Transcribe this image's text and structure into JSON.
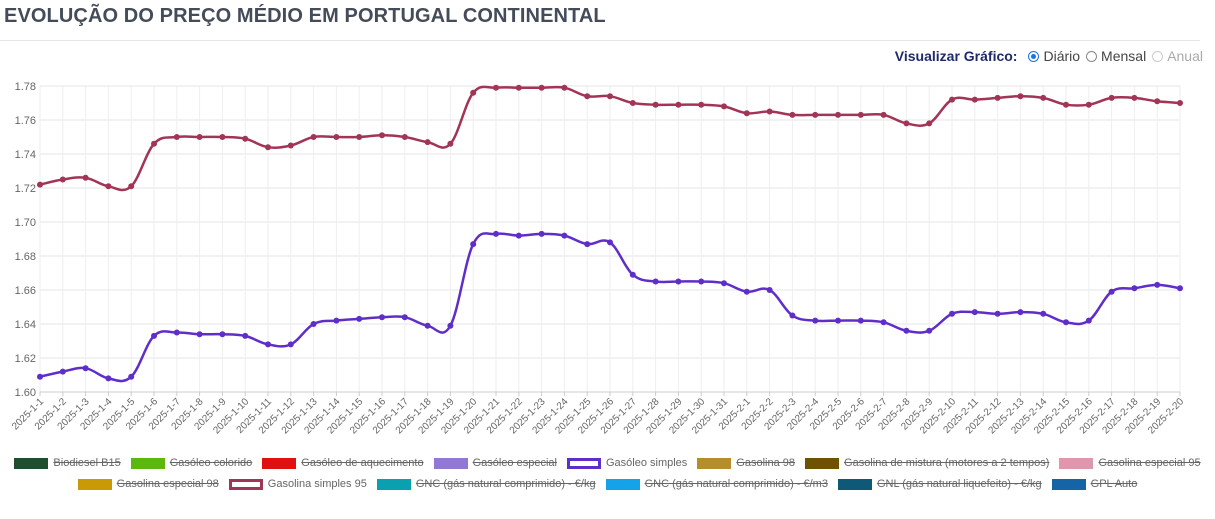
{
  "page": {
    "title": "EVOLUÇÃO DO PREÇO MÉDIO EM PORTUGAL CONTINENTAL",
    "view_label": "Visualizar Gráfico:",
    "view_options": [
      {
        "label": "Diário",
        "checked": true,
        "disabled": false
      },
      {
        "label": "Mensal",
        "checked": false,
        "disabled": false
      },
      {
        "label": "Anual",
        "checked": false,
        "disabled": true
      }
    ]
  },
  "legend": [
    {
      "label": "Biodiesel B15",
      "color": "#1f4d2e",
      "visible": false
    },
    {
      "label": "Gasóleo colorido",
      "color": "#5cb80f",
      "visible": false
    },
    {
      "label": "Gasóleo de aquecimento",
      "color": "#e01010",
      "visible": false
    },
    {
      "label": "Gasóleo especial",
      "color": "#9178d6",
      "visible": false
    },
    {
      "label": "Gasóleo simples",
      "color": "#5f2ec9",
      "visible": true
    },
    {
      "label": "Gasolina 98",
      "color": "#b38e2a",
      "visible": false
    },
    {
      "label": "Gasolina de mistura (motores a 2 tempos)",
      "color": "#6f5200",
      "visible": false
    },
    {
      "label": "Gasolina especial 95",
      "color": "#e097ad",
      "visible": false
    },
    {
      "label": "Gasolina especial 98",
      "color": "#c99a06",
      "visible": false
    },
    {
      "label": "Gasolina simples 95",
      "color": "#a23456",
      "visible": true
    },
    {
      "label": "GNC (gás natural comprimido) - €/kg",
      "color": "#0aa0b0",
      "visible": false
    },
    {
      "label": "GNC (gás natural comprimido) - €/m3",
      "color": "#14a3e8",
      "visible": false
    },
    {
      "label": "GNL (gás natural liquefeito) - €/kg",
      "color": "#0e5878",
      "visible": false
    },
    {
      "label": "GPL Auto",
      "color": "#1565a6",
      "visible": false
    }
  ],
  "chart_data": {
    "type": "line",
    "categories": [
      "2025-1-1",
      "2025-1-2",
      "2025-1-3",
      "2025-1-4",
      "2025-1-5",
      "2025-1-6",
      "2025-1-7",
      "2025-1-8",
      "2025-1-9",
      "2025-1-10",
      "2025-1-11",
      "2025-1-12",
      "2025-1-13",
      "2025-1-14",
      "2025-1-15",
      "2025-1-16",
      "2025-1-17",
      "2025-1-18",
      "2025-1-19",
      "2025-1-20",
      "2025-1-21",
      "2025-1-22",
      "2025-1-23",
      "2025-1-24",
      "2025-1-25",
      "2025-1-26",
      "2025-1-27",
      "2025-1-28",
      "2025-1-29",
      "2025-1-30",
      "2025-1-31",
      "2025-2-1",
      "2025-2-2",
      "2025-2-3",
      "2025-2-4",
      "2025-2-5",
      "2025-2-6",
      "2025-2-7",
      "2025-2-8",
      "2025-2-9",
      "2025-2-10",
      "2025-2-11",
      "2025-2-12",
      "2025-2-13",
      "2025-2-14",
      "2025-2-15",
      "2025-2-16",
      "2025-2-17",
      "2025-2-18",
      "2025-2-19",
      "2025-2-20"
    ],
    "series": [
      {
        "name": "Gasolina simples 95",
        "color": "#a23456",
        "values": [
          1.722,
          1.725,
          1.726,
          1.721,
          1.721,
          1.746,
          1.75,
          1.75,
          1.75,
          1.749,
          1.744,
          1.745,
          1.75,
          1.75,
          1.75,
          1.751,
          1.75,
          1.747,
          1.746,
          1.776,
          1.779,
          1.779,
          1.779,
          1.779,
          1.774,
          1.774,
          1.77,
          1.769,
          1.769,
          1.769,
          1.768,
          1.764,
          1.765,
          1.763,
          1.763,
          1.763,
          1.763,
          1.763,
          1.758,
          1.758,
          1.772,
          1.772,
          1.773,
          1.774,
          1.773,
          1.769,
          1.769,
          1.773,
          1.773,
          1.771,
          1.77
        ]
      },
      {
        "name": "Gasóleo simples",
        "color": "#5f2ec9",
        "values": [
          1.609,
          1.612,
          1.614,
          1.608,
          1.609,
          1.633,
          1.635,
          1.634,
          1.634,
          1.633,
          1.628,
          1.628,
          1.64,
          1.642,
          1.643,
          1.644,
          1.644,
          1.639,
          1.639,
          1.687,
          1.693,
          1.692,
          1.693,
          1.692,
          1.687,
          1.688,
          1.669,
          1.665,
          1.665,
          1.665,
          1.664,
          1.659,
          1.66,
          1.645,
          1.642,
          1.642,
          1.642,
          1.641,
          1.636,
          1.636,
          1.646,
          1.647,
          1.646,
          1.647,
          1.646,
          1.641,
          1.642,
          1.659,
          1.661,
          1.663,
          1.661
        ]
      }
    ],
    "y_ticks": [
      "1.60",
      "1.62",
      "1.64",
      "1.66",
      "1.68",
      "1.70",
      "1.72",
      "1.74",
      "1.76",
      "1.78"
    ],
    "ylim": [
      1.6,
      1.78
    ],
    "grid": true,
    "legend_position": "bottom"
  }
}
